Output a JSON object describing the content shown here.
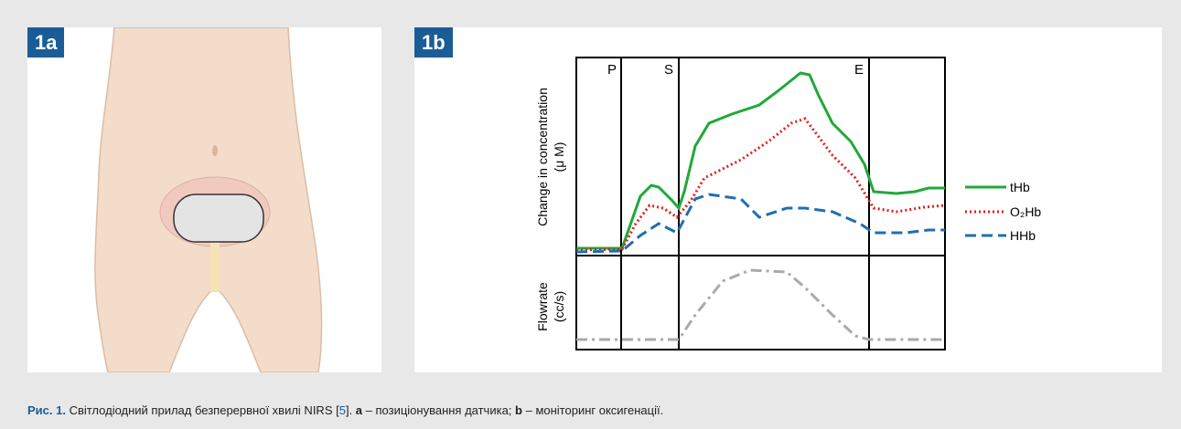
{
  "panels": [
    {
      "label": "1a"
    },
    {
      "label": "1b"
    }
  ],
  "chart": {
    "section_labels": [
      "P",
      "S",
      "E"
    ],
    "y_label_top": [
      "Change in concentration",
      "(μ M)"
    ],
    "y_label_bottom": [
      "Flowrate",
      "(cc/s)"
    ],
    "legend": [
      "tHb",
      "O₂Hb",
      "HHb"
    ]
  },
  "caption": {
    "prefix": "Рис. 1.",
    "text_1": " Світлодіодний прилад безперервної хвилі NIRS [",
    "ref": "5",
    "text_2": "]. ",
    "a": "a",
    "text_3": " – позиціонування датчика; ",
    "b": "b",
    "text_4": " – моніторинг оксигенації."
  }
}
